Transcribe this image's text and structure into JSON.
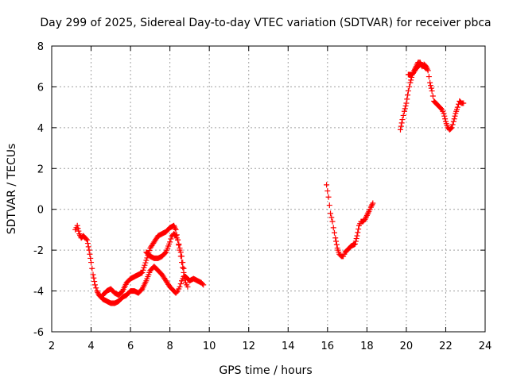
{
  "chart_data": {
    "type": "scatter",
    "title": "Day 299 of 2025, Sidereal Day-to-day VTEC variation (SDTVAR) for receiver pbca",
    "xlabel": "GPS time / hours",
    "ylabel": "SDTVAR / TECUs",
    "xlim": [
      2,
      24
    ],
    "ylim": [
      -6,
      8
    ],
    "xticks": [
      2,
      4,
      6,
      8,
      10,
      12,
      14,
      16,
      18,
      20,
      22,
      24
    ],
    "yticks": [
      -6,
      -4,
      -2,
      0,
      2,
      4,
      6,
      8
    ],
    "grid": true,
    "marker": "plus",
    "color": "#ff0000",
    "series": [
      {
        "x": [
          3.2,
          3.3,
          3.4,
          3.5,
          3.6,
          3.7,
          3.8,
          3.9,
          4.0,
          4.1,
          4.2,
          4.3,
          4.4,
          4.6,
          4.8,
          5.0,
          5.2,
          5.4,
          5.6,
          5.8,
          6.0,
          6.2,
          6.4,
          6.6,
          6.8,
          7.0,
          7.2,
          7.4,
          7.6,
          7.8,
          8.0,
          8.2,
          8.3,
          8.4,
          8.5,
          8.6,
          8.7,
          8.8,
          9.0,
          9.2,
          9.4,
          9.6,
          9.7
        ],
        "y": [
          -1.0,
          -0.8,
          -1.2,
          -1.4,
          -1.3,
          -1.4,
          -1.5,
          -2.0,
          -2.6,
          -3.2,
          -3.7,
          -4.0,
          -4.2,
          -4.4,
          -4.5,
          -4.6,
          -4.6,
          -4.5,
          -4.3,
          -4.2,
          -4.0,
          -4.0,
          -4.1,
          -3.9,
          -3.5,
          -3.0,
          -2.8,
          -3.0,
          -3.2,
          -3.5,
          -3.8,
          -4.0,
          -4.1,
          -4.0,
          -3.8,
          -3.5,
          -3.3,
          -3.3,
          -3.5,
          -3.4,
          -3.5,
          -3.6,
          -3.7
        ]
      },
      {
        "x": [
          4.6,
          4.8,
          5.0,
          5.2,
          5.4,
          5.6,
          5.8,
          6.0,
          6.2,
          6.4,
          6.6,
          6.8,
          7.0,
          7.2,
          7.4,
          7.6,
          7.8,
          8.0,
          8.2,
          8.3,
          8.4,
          8.5,
          8.6,
          8.7,
          8.8,
          8.9
        ],
        "y": [
          -4.2,
          -4.0,
          -3.9,
          -4.1,
          -4.2,
          -4.0,
          -3.6,
          -3.4,
          -3.3,
          -3.2,
          -3.1,
          -2.5,
          -1.9,
          -1.6,
          -1.3,
          -1.2,
          -1.1,
          -0.9,
          -0.8,
          -1.0,
          -1.5,
          -2.0,
          -2.6,
          -3.1,
          -3.6,
          -3.8
        ]
      },
      {
        "x": [
          6.8,
          7.0,
          7.2,
          7.4,
          7.6,
          7.8,
          8.0,
          8.1,
          8.2,
          8.3,
          8.4,
          8.5,
          8.6,
          8.7
        ],
        "y": [
          -2.1,
          -2.3,
          -2.4,
          -2.4,
          -2.3,
          -2.1,
          -1.6,
          -1.3,
          -1.2,
          -1.3,
          -1.5,
          -1.9,
          -2.3,
          -2.9
        ]
      },
      {
        "x": [
          15.95,
          16.0,
          16.05,
          16.1,
          16.15,
          16.2,
          16.25,
          16.3,
          16.4,
          16.5,
          16.6,
          16.7,
          16.8,
          16.9,
          17.0,
          17.2,
          17.4,
          17.5,
          17.6,
          17.7,
          17.8,
          17.9,
          18.0,
          18.1,
          18.2,
          18.3
        ],
        "y": [
          1.2,
          0.9,
          0.6,
          0.2,
          -0.2,
          -0.4,
          -0.6,
          -0.9,
          -1.4,
          -1.9,
          -2.2,
          -2.3,
          -2.3,
          -2.1,
          -2.0,
          -1.8,
          -1.7,
          -1.3,
          -0.8,
          -0.6,
          -0.6,
          -0.5,
          -0.3,
          -0.1,
          0.1,
          0.3
        ]
      },
      {
        "x": [
          19.7,
          19.8,
          19.9,
          20.0,
          20.1,
          20.2,
          20.3,
          20.4,
          20.5,
          20.6,
          20.7,
          20.8,
          20.9,
          21.0,
          21.1,
          21.2,
          21.3,
          21.4,
          21.5,
          21.6,
          21.8,
          21.9,
          22.0,
          22.1,
          22.2,
          22.3,
          22.4,
          22.5,
          22.6,
          22.7,
          22.8,
          22.9
        ],
        "y": [
          3.9,
          4.4,
          4.8,
          5.2,
          5.8,
          6.2,
          6.6,
          6.8,
          7.0,
          7.2,
          7.2,
          7.0,
          7.1,
          7.0,
          6.8,
          6.2,
          5.8,
          5.3,
          5.2,
          5.1,
          4.9,
          4.7,
          4.3,
          4.0,
          3.9,
          4.0,
          4.3,
          4.7,
          5.0,
          5.3,
          5.2,
          5.2
        ]
      },
      {
        "x": [
          20.1,
          20.3,
          20.5,
          20.7,
          20.9,
          21.0
        ],
        "y": [
          6.6,
          6.6,
          6.9,
          7.1,
          7.0,
          6.9
        ]
      }
    ]
  }
}
